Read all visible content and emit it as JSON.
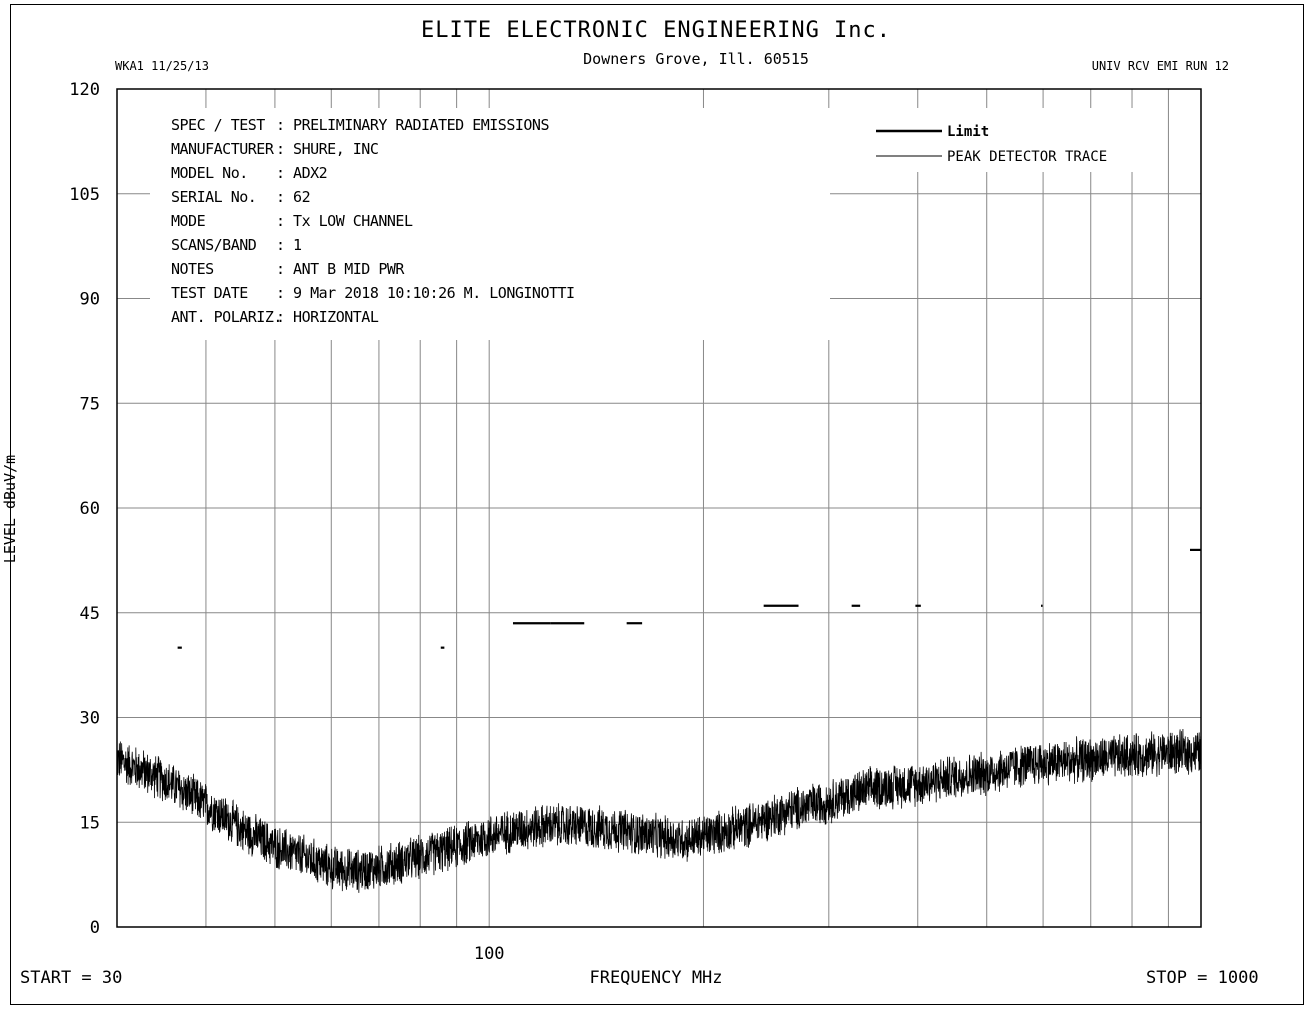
{
  "header": {
    "title": "ELITE ELECTRONIC ENGINEERING Inc.",
    "subtitle": "Downers Grove, Ill. 60515",
    "left_code": "WKA1  11/25/13",
    "right_code": "UNIV RCV EMI  RUN 12"
  },
  "info_block": [
    {
      "label": "SPEC / TEST",
      "value": ": PRELIMINARY RADIATED EMISSIONS"
    },
    {
      "label": "MANUFACTURER",
      "value": ": SHURE, INC"
    },
    {
      "label": "MODEL No.",
      "value": ": ADX2"
    },
    {
      "label": "SERIAL No.",
      "value": ": 62"
    },
    {
      "label": "MODE",
      "value": ": Tx LOW CHANNEL"
    },
    {
      "label": "SCANS/BAND",
      "value": ": 1"
    },
    {
      "label": "NOTES",
      "value": ": ANT B MID PWR"
    },
    {
      "label": "TEST DATE",
      "value": ":  9 Mar 2018 10:10:26  M. LONGINOTTI"
    },
    {
      "label": "ANT. POLARIZ.",
      "value": ": HORIZONTAL"
    }
  ],
  "footer": {
    "start": "START = 30",
    "xlabel": "FREQUENCY  MHz",
    "stop": "STOP = 1000"
  },
  "chart_data": {
    "type": "line",
    "xscale": "log",
    "xlim": [
      30,
      1000
    ],
    "ylim": [
      0,
      120
    ],
    "ylabel": "LEVEL  dBuV/m",
    "xlabel": "FREQUENCY  MHz",
    "y_ticks": [
      "0",
      "15",
      "30",
      "45",
      "60",
      "75",
      "90",
      "105",
      "120"
    ],
    "x_tick_labels": [
      {
        "x": 100,
        "label": "100"
      }
    ],
    "x_gridlines": [
      30,
      40,
      50,
      60,
      70,
      80,
      90,
      100,
      200,
      300,
      400,
      500,
      600,
      700,
      800,
      900,
      1000
    ],
    "grid": true,
    "legend": {
      "position": "top-right",
      "entries": [
        {
          "name": "Limit",
          "style": "thick"
        },
        {
          "name": "PEAK  DETECTOR TRACE",
          "style": "thin"
        }
      ]
    },
    "series": [
      {
        "name": "Limit",
        "segments": [
          {
            "x": [
              36.5,
              37.0
            ],
            "y": 40
          },
          {
            "x": [
              85.5,
              86.5
            ],
            "y": 40
          },
          {
            "x": [
              108,
              122
            ],
            "y": 43.5
          },
          {
            "x": [
              122,
              136
            ],
            "y": 43.5
          },
          {
            "x": [
              156,
              164
            ],
            "y": 43.5
          },
          {
            "x": [
              243,
              272
            ],
            "y": 46
          },
          {
            "x": [
              323,
              332
            ],
            "y": 46
          },
          {
            "x": [
              397,
              404
            ],
            "y": 46
          },
          {
            "x": [
              596,
              599
            ],
            "y": 46
          },
          {
            "x": [
              965,
              1000
            ],
            "y": 54
          }
        ]
      },
      {
        "name": "PEAK  DETECTOR TRACE",
        "envelope": {
          "x": [
            30,
            35,
            40,
            45,
            50,
            55,
            60,
            65,
            70,
            80,
            90,
            100,
            110,
            120,
            130,
            150,
            170,
            190,
            200,
            230,
            260,
            300,
            350,
            400,
            450,
            500,
            550,
            600,
            700,
            800,
            900,
            1000
          ],
          "y": [
            24,
            21,
            17.5,
            14,
            11.5,
            10,
            8.5,
            8,
            8.5,
            10,
            11.5,
            13,
            14,
            14.5,
            14.5,
            14,
            13,
            12.5,
            13,
            14.5,
            16.5,
            18,
            20,
            20.5,
            21.5,
            22,
            23,
            23.5,
            24,
            24.5,
            25,
            25
          ]
        },
        "noise_spread": 3.5
      }
    ]
  }
}
